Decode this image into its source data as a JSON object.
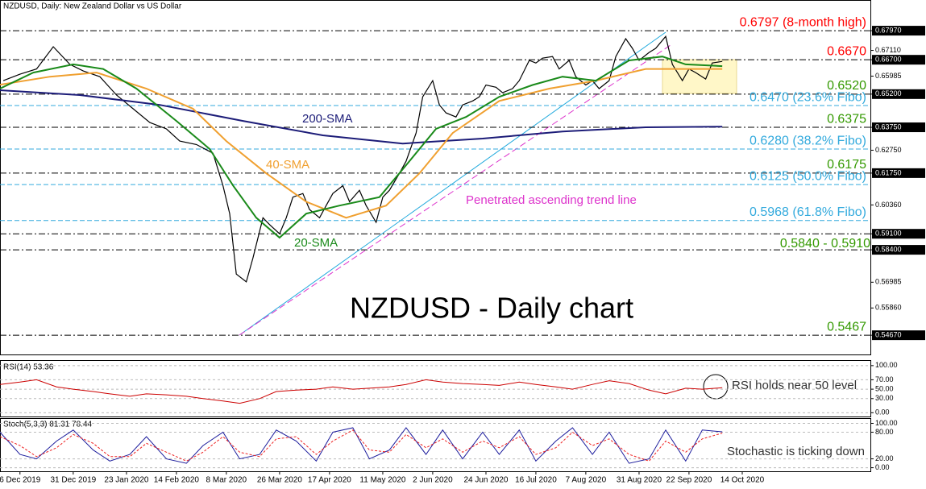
{
  "chart_data": [
    {
      "type": "line",
      "title": "NZDUSD, Daily:  New Zealand Dollar vs US Dollar",
      "subtitle": "NZDUSD - Daily chart",
      "color": "#000000",
      "x": [
        1,
        6,
        11,
        16,
        21,
        25,
        30,
        35,
        40,
        45,
        50,
        54,
        59,
        64,
        67,
        69,
        71,
        74,
        76,
        79,
        81,
        84,
        86,
        88,
        91,
        93,
        96,
        98,
        100,
        103,
        105,
        108,
        110,
        113,
        115,
        117,
        120,
        122,
        125,
        127,
        130,
        132,
        134,
        137,
        139,
        142,
        144,
        146,
        149,
        151,
        154,
        156,
        159,
        161,
        163,
        166,
        168,
        171,
        173,
        176,
        178,
        180,
        183,
        185,
        188,
        190,
        192,
        195,
        197,
        200,
        202,
        205,
        207,
        209,
        212,
        214,
        217
      ],
      "values": [
        0.6579,
        0.6607,
        0.663,
        0.6727,
        0.665,
        0.6621,
        0.6596,
        0.6516,
        0.6456,
        0.6396,
        0.6368,
        0.6315,
        0.63,
        0.6262,
        0.612,
        0.5998,
        0.5734,
        0.57,
        0.5805,
        0.598,
        0.595,
        0.591,
        0.598,
        0.607,
        0.6086,
        0.6016,
        0.598,
        0.6033,
        0.6086,
        0.612,
        0.605,
        0.61,
        0.6033,
        0.596,
        0.607,
        0.61,
        0.6174,
        0.6227,
        0.635,
        0.6508,
        0.6579,
        0.6473,
        0.6438,
        0.642,
        0.6473,
        0.649,
        0.6508,
        0.656,
        0.655,
        0.6526,
        0.6544,
        0.6579,
        0.6667,
        0.6656,
        0.6677,
        0.6684,
        0.663,
        0.6667,
        0.6596,
        0.656,
        0.6579,
        0.6544,
        0.6579,
        0.6684,
        0.6762,
        0.672,
        0.6667,
        0.6702,
        0.672,
        0.6772,
        0.665,
        0.6579,
        0.663,
        0.6614,
        0.6586,
        0.6656,
        0.6663
      ],
      "series": [
        {
          "name": "200-SMA",
          "color": "#1c1c78",
          "x": [
            0,
            24,
            48,
            73,
            97,
            121,
            145,
            169,
            194,
            217
          ],
          "values": [
            0.6537,
            0.6516,
            0.6473,
            0.6403,
            0.634,
            0.6304,
            0.6326,
            0.6357,
            0.6375,
            0.6378
          ]
        },
        {
          "name": "40-SMA",
          "color": "#f0a030",
          "x": [
            0,
            15,
            29,
            44,
            58,
            68,
            80,
            92,
            104,
            116,
            126,
            136,
            150,
            165,
            179,
            194,
            208,
            217
          ],
          "values": [
            0.6561,
            0.6596,
            0.6614,
            0.6544,
            0.6456,
            0.6315,
            0.6174,
            0.605,
            0.598,
            0.6033,
            0.6174,
            0.635,
            0.649,
            0.6544,
            0.6579,
            0.663,
            0.663,
            0.663
          ]
        },
        {
          "name": "20-SMA",
          "color": "#1a8a1a",
          "x": [
            0,
            10,
            22,
            31,
            41,
            53,
            63,
            70,
            77,
            84,
            92,
            102,
            114,
            123,
            131,
            140,
            150,
            160,
            169,
            179,
            189,
            199,
            206,
            217
          ],
          "values": [
            0.6544,
            0.6614,
            0.665,
            0.663,
            0.6544,
            0.6403,
            0.628,
            0.6121,
            0.598,
            0.5893,
            0.5998,
            0.6033,
            0.607,
            0.6227,
            0.6368,
            0.642,
            0.6508,
            0.656,
            0.6596,
            0.6579,
            0.6667,
            0.6684,
            0.665,
            0.6642
          ]
        }
      ],
      "xlim": [
        0,
        261.5
      ],
      "ylim": [
        0.5383,
        0.6931
      ],
      "xticks": [
        {
          "value": 6,
          "label": "6 Dec 2019"
        },
        {
          "value": 22,
          "label": "31 Dec 2019"
        },
        {
          "value": 38,
          "label": "23 Jan 2020"
        },
        {
          "value": 53,
          "label": "14 Feb 2020"
        },
        {
          "value": 68,
          "label": "8 Mar 2020"
        },
        {
          "value": 84,
          "label": "26 Mar 2020"
        },
        {
          "value": 99,
          "label": "17 Apr 2020"
        },
        {
          "value": 115,
          "label": "11 May 2020"
        },
        {
          "value": 130,
          "label": "2 Jun 2020"
        },
        {
          "value": 146,
          "label": "24 Jun 2020"
        },
        {
          "value": 161,
          "label": "16 Jul 2020"
        },
        {
          "value": 176,
          "label": "7 Aug 2020"
        },
        {
          "value": 192,
          "label": "31 Aug 2020"
        },
        {
          "value": 207,
          "label": "22 Sep 2020"
        },
        {
          "value": 223,
          "label": "14 Oct 2020"
        }
      ],
      "yticks": [
        {
          "value": 0.6797,
          "label": "0.67970"
        },
        {
          "value": 0.6711,
          "label": "0.67110"
        },
        {
          "value": 0.667,
          "label": "0.66700"
        },
        {
          "value": 0.65985,
          "label": "0.65985"
        },
        {
          "value": 0.652,
          "label": "0.65200"
        },
        {
          "value": 0.6375,
          "label": "0.63750"
        },
        {
          "value": 0.6275,
          "label": "0.62750"
        },
        {
          "value": 0.6175,
          "label": "0.61750"
        },
        {
          "value": 0.6036,
          "label": "0.60360"
        },
        {
          "value": 0.591,
          "label": "0.59100"
        },
        {
          "value": 0.584,
          "label": "0.58400"
        },
        {
          "value": 0.56985,
          "label": "0.56985"
        },
        {
          "value": 0.5586,
          "label": "0.55860"
        },
        {
          "value": 0.5467,
          "label": "0.54670"
        }
      ],
      "levels": [
        {
          "value": 0.6797,
          "label": "0.6797 (8-month high)",
          "color": "#ff0000",
          "style": "level"
        },
        {
          "value": 0.667,
          "label": "0.6670",
          "color": "#ff0000",
          "style": "level"
        },
        {
          "value": 0.652,
          "label": "0.6520",
          "color": "#339900",
          "style": "level"
        },
        {
          "value": 0.647,
          "label": "0.6470 (23.6% Fibo)",
          "color": "#33aadd",
          "style": "fibo"
        },
        {
          "value": 0.6375,
          "label": "0.6375",
          "color": "#339900",
          "style": "level"
        },
        {
          "value": 0.628,
          "label": "0.6280 (38.2% Fibo)",
          "color": "#33aadd",
          "style": "fibo"
        },
        {
          "value": 0.6175,
          "label": "0.6175",
          "color": "#339900",
          "style": "level"
        },
        {
          "value": 0.6125,
          "label": "0.6125 (50.0% Fibo)",
          "color": "#33aadd",
          "style": "fibo"
        },
        {
          "value": 0.5968,
          "label": "0.5968 (61.8% Fibo)",
          "color": "#33aadd",
          "style": "fibo"
        },
        {
          "value": 0.591,
          "color": "#000000",
          "style": "level"
        },
        {
          "value": 0.584,
          "color": "#000000",
          "style": "level"
        },
        {
          "value": 0.5467,
          "label": "0.5467",
          "color": "#339900",
          "style": "level"
        }
      ],
      "range_label": "0.5840 - 0.5910",
      "trend_label": "Penetrated ascending trend line"
    },
    {
      "type": "line",
      "title": "RSI(14) 53.36",
      "annotation": "RSI holds near 50 level",
      "x": [
        0,
        6,
        11,
        17,
        22,
        28,
        33,
        39,
        44,
        50,
        56,
        61,
        67,
        72,
        78,
        83,
        89,
        95,
        100,
        106,
        111,
        117,
        122,
        128,
        133,
        139,
        145,
        150,
        156,
        161,
        167,
        172,
        178,
        183,
        189,
        195,
        200,
        206,
        211,
        217
      ],
      "series": [
        {
          "color": "#cc0000",
          "values": [
            60,
            65,
            70,
            55,
            50,
            45,
            40,
            35,
            40,
            38,
            35,
            30,
            25,
            20,
            30,
            45,
            48,
            50,
            55,
            50,
            52,
            55,
            60,
            70,
            65,
            62,
            60,
            58,
            65,
            60,
            55,
            50,
            60,
            68,
            62,
            48,
            40,
            52,
            50,
            53
          ]
        }
      ],
      "xlim": [
        0,
        261.5
      ],
      "ylim": [
        -8,
        110
      ],
      "yticks": [
        {
          "value": 100,
          "label": "100.00"
        },
        {
          "value": 70,
          "label": "70.00"
        },
        {
          "value": 50,
          "label": "50.00"
        },
        {
          "value": 30,
          "label": "30.00"
        },
        {
          "value": 0,
          "label": "0.00"
        }
      ]
    },
    {
      "type": "line",
      "title": "Stoch(5,3,3) 81.31 78.44",
      "annotation": "Stochastic is ticking down",
      "x": [
        0,
        6,
        11,
        17,
        22,
        28,
        33,
        39,
        44,
        50,
        56,
        61,
        67,
        72,
        78,
        83,
        89,
        95,
        100,
        106,
        111,
        117,
        122,
        128,
        133,
        139,
        145,
        150,
        156,
        161,
        167,
        172,
        178,
        183,
        189,
        195,
        200,
        206,
        211,
        217
      ],
      "series": [
        {
          "color": "#1c1c9c",
          "values": [
            80,
            30,
            20,
            60,
            85,
            40,
            15,
            30,
            70,
            20,
            10,
            50,
            80,
            20,
            30,
            85,
            60,
            15,
            80,
            90,
            20,
            40,
            90,
            30,
            85,
            20,
            80,
            30,
            85,
            15,
            60,
            90,
            30,
            80,
            10,
            20,
            85,
            15,
            85,
            81
          ]
        },
        {
          "color": "#ee2222",
          "dashed": true,
          "values": [
            70,
            50,
            25,
            45,
            75,
            55,
            25,
            25,
            55,
            35,
            15,
            35,
            70,
            35,
            25,
            65,
            70,
            30,
            60,
            85,
            40,
            35,
            75,
            45,
            65,
            35,
            60,
            45,
            70,
            30,
            45,
            80,
            50,
            65,
            30,
            15,
            60,
            35,
            65,
            78
          ]
        }
      ],
      "xlim": [
        0,
        261.5
      ],
      "ylim": [
        -8,
        110
      ],
      "yticks": [
        {
          "value": 100,
          "label": "100.00"
        },
        {
          "value": 80,
          "label": "80.00"
        },
        {
          "value": 20,
          "label": "20.00"
        },
        {
          "value": 0,
          "label": "0.00"
        }
      ]
    }
  ]
}
